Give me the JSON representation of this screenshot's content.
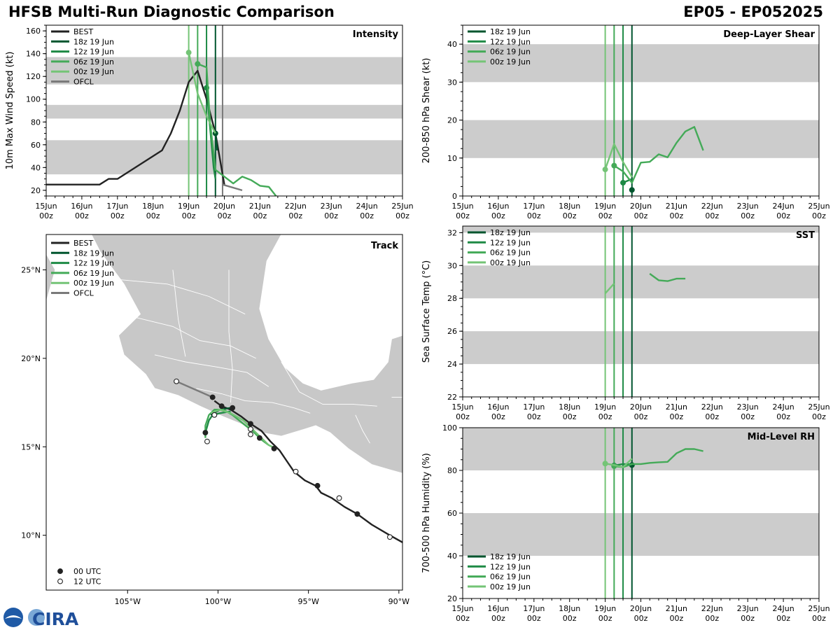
{
  "header": {
    "title": "HFSB Multi-Run Diagnostic Comparison",
    "storm_id": "EP05 - EP052025"
  },
  "logo": {
    "text": "CIRA",
    "emblem": "noaa-emblem-icon"
  },
  "colors": {
    "BEST": "#222222",
    "OFCL": "#7a7a7a",
    "run18": "#00552e",
    "run12": "#1e8a45",
    "run06": "#44aa58",
    "run00": "#74c476",
    "band": "#cccccc",
    "land": "#c8c8c8"
  },
  "time_axis": {
    "ticks": [
      "15Jun\n00z",
      "16Jun\n00z",
      "17Jun\n00z",
      "18Jun\n00z",
      "19Jun\n00z",
      "20Jun\n00z",
      "21Jun\n00z",
      "22Jun\n00z",
      "23Jun\n00z",
      "24Jun\n00z",
      "25Jun\n00z"
    ],
    "init_lines": [
      {
        "t": 4.0,
        "run": "run00"
      },
      {
        "t": 4.25,
        "run": "run06"
      },
      {
        "t": 4.5,
        "run": "run12"
      },
      {
        "t": 4.75,
        "run": "run18"
      }
    ]
  },
  "chart_data": [
    {
      "id": "intensity",
      "type": "line",
      "title": "Intensity",
      "ylabel": "10m Max Wind Speed (kt)",
      "ylim": [
        15,
        165
      ],
      "xlim": [
        0,
        10
      ],
      "yticks": [
        20,
        40,
        60,
        80,
        100,
        120,
        140,
        160
      ],
      "bands": [
        [
          34,
          64
        ],
        [
          83,
          95
        ],
        [
          113,
          137
        ]
      ],
      "legend": [
        "BEST",
        "18z 19 Jun",
        "12z 19 Jun",
        "06z 19 Jun",
        "00z 19 Jun",
        "OFCL"
      ],
      "init_marker_t": 4.95,
      "series": [
        {
          "key": "BEST",
          "x": [
            0,
            1,
            1.5,
            1.75,
            2,
            3.25,
            3.5,
            3.75,
            4,
            4.25,
            4.5,
            4.75,
            5
          ],
          "y": [
            25,
            25,
            25,
            30,
            30,
            55,
            70,
            90,
            115,
            125,
            100,
            70,
            25
          ]
        },
        {
          "key": "OFCL",
          "x": [
            4.95,
            5.5
          ],
          "y": [
            25,
            20
          ]
        },
        {
          "key": "run18",
          "x": [
            4.75,
            4.8
          ],
          "y": [
            70,
            55
          ],
          "marker": true
        },
        {
          "key": "run12",
          "x": [
            4.5,
            4.6,
            4.7,
            4.75
          ],
          "y": [
            110,
            75,
            40,
            30
          ],
          "marker": true
        },
        {
          "key": "run06",
          "x": [
            4.25,
            4.5,
            4.6,
            4.75,
            5,
            5.25,
            5.5,
            5.75,
            6,
            6.25,
            6.5
          ],
          "y": [
            131,
            128,
            80,
            38,
            32,
            26,
            32,
            29,
            24,
            23,
            13
          ],
          "marker": true
        },
        {
          "key": "run00",
          "x": [
            4,
            4.25,
            4.5,
            4.75
          ],
          "y": [
            141,
            105,
            85,
            70
          ],
          "marker": true
        }
      ]
    },
    {
      "id": "shear",
      "type": "line",
      "title": "Deep-Layer Shear",
      "ylabel": "200-850 hPa Shear (kt)",
      "ylim": [
        0,
        45
      ],
      "xlim": [
        0,
        10
      ],
      "yticks": [
        0,
        10,
        20,
        30,
        40
      ],
      "bands": [
        [
          10,
          20
        ],
        [
          30,
          40
        ]
      ],
      "legend": [
        "18z 19 Jun",
        "12z 19 Jun",
        "06z 19 Jun",
        "00z 19 Jun"
      ],
      "series": [
        {
          "key": "run18",
          "x": [
            4.75,
            4.8
          ],
          "y": [
            1.6,
            1.3
          ],
          "marker": true
        },
        {
          "key": "run12",
          "x": [
            4.5,
            4.75
          ],
          "y": [
            3.5,
            4.5
          ],
          "marker": true
        },
        {
          "key": "run06",
          "x": [
            4.25,
            4.5,
            4.75,
            5,
            5.25,
            5.5,
            5.75,
            6,
            6.25,
            6.5,
            6.75
          ],
          "y": [
            8,
            6.5,
            3.5,
            8.8,
            9,
            11,
            10.2,
            14,
            17,
            18.2,
            12
          ],
          "marker": true
        },
        {
          "key": "run00",
          "x": [
            4,
            4.25,
            4.5,
            4.75
          ],
          "y": [
            7,
            13.7,
            9,
            5
          ],
          "marker": true
        }
      ]
    },
    {
      "id": "track",
      "type": "line",
      "title": "Track",
      "xlabel": "",
      "ylabel": "",
      "lon_range": [
        -109.5,
        -89.8
      ],
      "lat_range": [
        6.9,
        27
      ],
      "xticks": [
        {
          "v": -105,
          "label": "105°W"
        },
        {
          "v": -100,
          "label": "100°W"
        },
        {
          "v": -95,
          "label": "95°W"
        },
        {
          "v": -90,
          "label": "90°W"
        }
      ],
      "yticks": [
        {
          "v": 10,
          "label": "10°N"
        },
        {
          "v": 15,
          "label": "15°N"
        },
        {
          "v": 20,
          "label": "20°N"
        },
        {
          "v": 25,
          "label": "25°N"
        }
      ],
      "legend": [
        "BEST",
        "18z 19 Jun",
        "12z 19 Jun",
        "06z 19 Jun",
        "00z 19 Jun",
        "OFCL"
      ],
      "marker_legend": [
        "00 UTC",
        "12 UTC"
      ],
      "series": [
        {
          "key": "BEST",
          "lon": [
            -89.8,
            -90.5,
            -91.5,
            -92.3,
            -93,
            -93.7,
            -94.3,
            -94.6,
            -95.2,
            -95.8,
            -96.2,
            -96.6,
            -97.1,
            -97.6,
            -98.2,
            -98.7,
            -99.3,
            -99.8,
            -100.2
          ],
          "lat": [
            9.6,
            10,
            10.6,
            11.2,
            11.6,
            12.1,
            12.4,
            12.8,
            13.1,
            13.6,
            14.2,
            14.8,
            15.3,
            15.9,
            16.3,
            16.7,
            17.1,
            17.3,
            17.6
          ]
        },
        {
          "key": "OFCL",
          "lon": [
            -100.3,
            -102.3
          ],
          "lat": [
            17.8,
            18.7
          ]
        },
        {
          "key": "run18",
          "lon": [
            -99.3,
            -99.9,
            -100.4
          ],
          "lat": [
            17.2,
            17.1,
            16.8
          ]
        },
        {
          "key": "run12",
          "lon": [
            -99.3,
            -99.9,
            -100.3,
            -100.5,
            -100.7
          ],
          "lat": [
            17.0,
            16.9,
            16.8,
            16.5,
            15.8
          ]
        },
        {
          "key": "run06",
          "lon": [
            -96.8,
            -97.2,
            -97.6,
            -98.1,
            -98.6,
            -99.2,
            -99.7,
            -100.2,
            -100.5,
            -100.7,
            -100.7
          ],
          "lat": [
            14.9,
            15.1,
            15.4,
            15.9,
            16.3,
            16.8,
            17.1,
            17.1,
            16.8,
            16.2,
            15.5
          ]
        },
        {
          "key": "run00",
          "lon": [
            -96.8,
            -97.2,
            -97.6,
            -98.1,
            -98.6,
            -99.3,
            -99.9,
            -100.4
          ],
          "lat": [
            14.9,
            15.1,
            15.5,
            16.0,
            16.5,
            16.9,
            17.1,
            16.9
          ]
        }
      ],
      "fixes_00utc": [
        {
          "lon": -90.5,
          "lat": 9.9,
          "filled": false
        },
        {
          "lon": -92.3,
          "lat": 11.2,
          "filled": true
        },
        {
          "lon": -93.3,
          "lat": 12.1,
          "filled": false
        },
        {
          "lon": -94.5,
          "lat": 12.8,
          "filled": true
        },
        {
          "lon": -95.7,
          "lat": 13.6,
          "filled": false
        },
        {
          "lon": -97.7,
          "lat": 15.5,
          "filled": true
        },
        {
          "lon": -96.9,
          "lat": 14.9,
          "filled": true
        },
        {
          "lon": -98.2,
          "lat": 16.3,
          "filled": true
        },
        {
          "lon": -98.2,
          "lat": 16.0,
          "filled": false
        },
        {
          "lon": -98.2,
          "lat": 15.7,
          "filled": false
        },
        {
          "lon": -99.2,
          "lat": 17.2,
          "filled": true
        },
        {
          "lon": -99.8,
          "lat": 17.3,
          "filled": true
        },
        {
          "lon": -100.2,
          "lat": 16.8,
          "filled": false
        },
        {
          "lon": -100.3,
          "lat": 17.8,
          "filled": true
        },
        {
          "lon": -100.7,
          "lat": 15.8,
          "filled": true
        },
        {
          "lon": -100.6,
          "lat": 15.3,
          "filled": false
        },
        {
          "lon": -102.3,
          "lat": 18.7,
          "filled": false
        }
      ]
    },
    {
      "id": "sst",
      "type": "line",
      "title": "SST",
      "ylabel": "Sea Surface Temp (°C)",
      "ylim": [
        22,
        32.4
      ],
      "xlim": [
        0,
        10
      ],
      "yticks": [
        22,
        24,
        26,
        28,
        30,
        32
      ],
      "bands": [
        [
          24,
          26
        ],
        [
          28,
          30
        ],
        [
          32,
          32.4
        ]
      ],
      "legend": [
        "18z 19 Jun",
        "12z 19 Jun",
        "06z 19 Jun",
        "00z 19 Jun"
      ],
      "series": [
        {
          "key": "run06",
          "x": [
            5.25,
            5.5,
            5.75,
            6,
            6.25
          ],
          "y": [
            29.5,
            29.1,
            29.05,
            29.2,
            29.2
          ]
        },
        {
          "key": "run00",
          "x": [
            4,
            4.25
          ],
          "y": [
            28.3,
            28.9
          ]
        }
      ]
    },
    {
      "id": "rh",
      "type": "line",
      "title": "Mid-Level RH",
      "ylabel": "700-500 hPa Humidity (%)",
      "ylim": [
        20,
        100
      ],
      "xlim": [
        0,
        10
      ],
      "yticks": [
        20,
        40,
        60,
        80,
        100
      ],
      "bands": [
        [
          40,
          60
        ],
        [
          80,
          100
        ]
      ],
      "legend": [
        "18z 19 Jun",
        "12z 19 Jun",
        "06z 19 Jun",
        "00z 19 Jun"
      ],
      "series": [
        {
          "key": "run18",
          "x": [
            4.75,
            4.8
          ],
          "y": [
            82.5,
            82.4
          ],
          "marker": true
        },
        {
          "key": "run12",
          "x": [
            4.25,
            4.5,
            4.75
          ],
          "y": [
            82.3,
            83,
            82.8
          ],
          "marker": true
        },
        {
          "key": "run06",
          "x": [
            4.25,
            4.5,
            4.75,
            5,
            5.25,
            5.5,
            5.75,
            6,
            6.25,
            6.5,
            6.75
          ],
          "y": [
            82,
            81.5,
            83,
            83,
            83.5,
            83.8,
            84,
            88,
            90,
            90,
            89
          ],
          "marker": true
        },
        {
          "key": "run00",
          "x": [
            4,
            4.25,
            4.5,
            4.75
          ],
          "y": [
            83.2,
            82.5,
            81.5,
            85.5
          ],
          "marker": true
        }
      ]
    }
  ]
}
